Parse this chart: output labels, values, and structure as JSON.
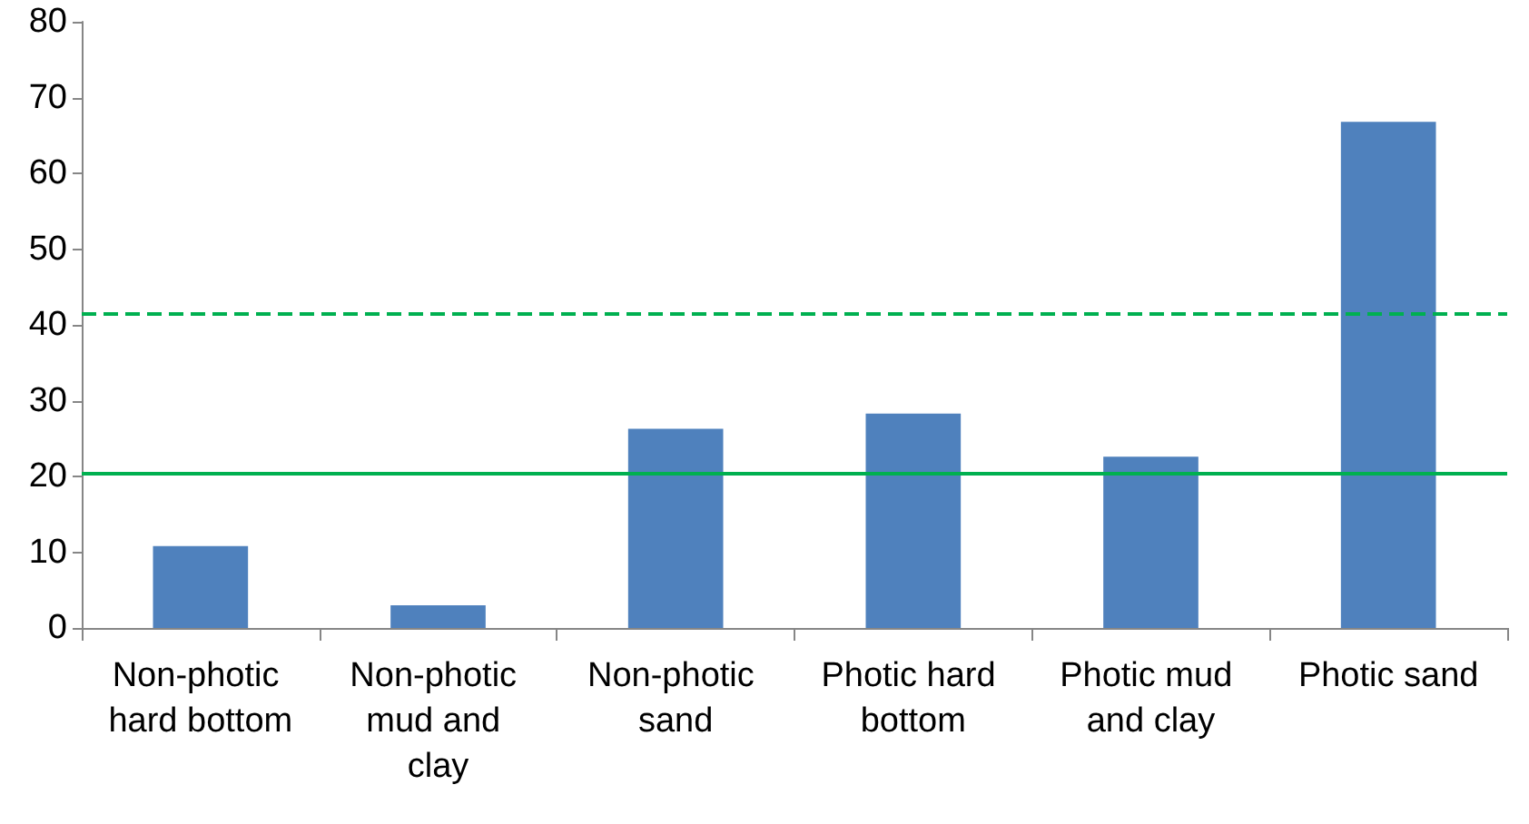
{
  "chart_data": {
    "type": "bar",
    "categories": [
      "Non-photic hard bottom",
      "Non-photic mud and clay",
      "Non-photic sand",
      "Photic hard bottom",
      "Photic mud and clay",
      "Photic sand"
    ],
    "series": [
      {
        "color": "#4f81bd",
        "values": [
          10.8,
          3,
          26.3,
          28.3,
          22.6,
          66.8
        ]
      }
    ],
    "ylim": [
      0,
      80
    ],
    "yticks": [
      0,
      10,
      20,
      30,
      40,
      50,
      60,
      70,
      80
    ],
    "grid": false,
    "ref_lines": [
      {
        "axis": "y",
        "value": 20.5,
        "color": "#00b050",
        "line_style": "solid"
      },
      {
        "axis": "y",
        "value": 41.5,
        "color": "#00b050",
        "line_style": "dashed"
      }
    ]
  }
}
